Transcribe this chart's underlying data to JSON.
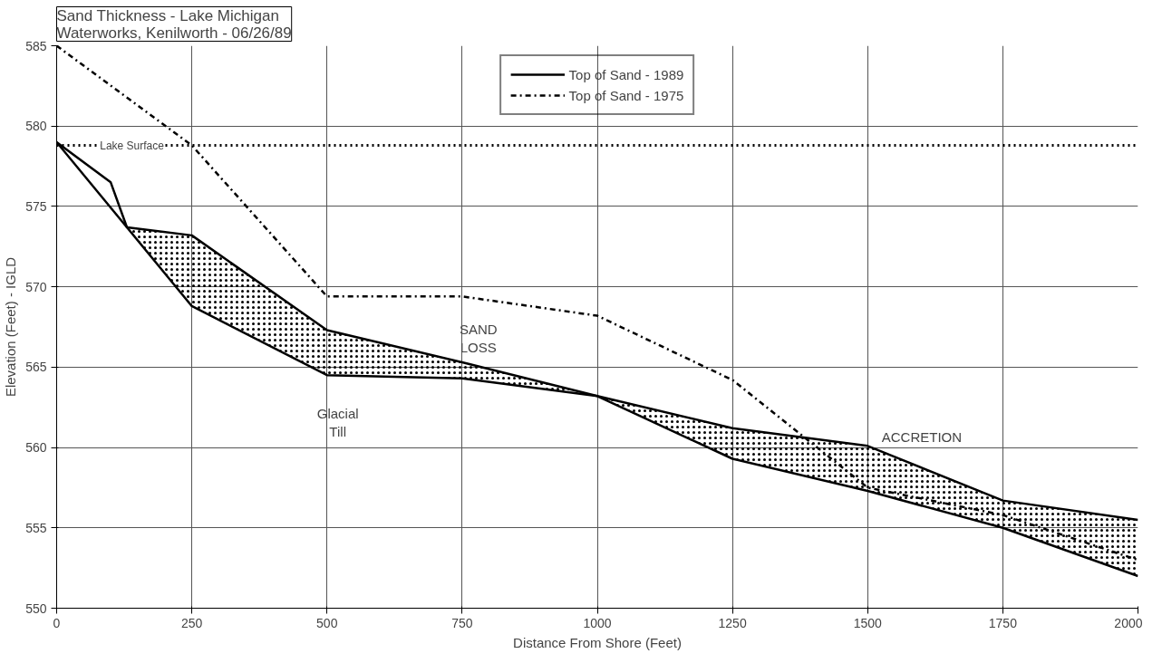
{
  "chart_data": {
    "type": "line",
    "title": "Sand Thickness - Lake Michigan\nWaterworks, Kenilworth - 06/26/89",
    "xlabel": "Distance From Shore (Feet)",
    "ylabel": "Elevation (Feet) - IGLD",
    "xlim": [
      0,
      2000
    ],
    "ylim": [
      550,
      585
    ],
    "xticks": [
      0,
      250,
      500,
      750,
      1000,
      1250,
      1500,
      1750,
      2000
    ],
    "yticks": [
      550,
      555,
      560,
      565,
      570,
      575,
      580,
      585
    ],
    "grid": true,
    "legend": "top",
    "marker": "none",
    "series": [
      {
        "name": "Top of Sand - 1989",
        "color": "#000000",
        "line_style": "solid",
        "x": [
          0,
          100,
          130,
          250,
          500,
          750,
          1000,
          1250,
          1500,
          1750,
          2000
        ],
        "values": [
          579,
          576.5,
          573.7,
          573.2,
          567.3,
          565.3,
          563.2,
          561.2,
          560.1,
          556.7,
          555.5
        ],
        "lower": [
          579,
          576.5,
          573.7,
          568.8,
          564.5,
          564.3,
          563.2,
          559.3,
          557.3,
          555,
          552
        ],
        "upper": [
          579,
          576.5,
          573.7,
          573.2,
          567.3,
          565.3,
          563.2,
          561.2,
          560.1,
          556.7,
          555.5
        ]
      },
      {
        "color": "#000000",
        "line_style": "solid",
        "x": [
          0,
          130,
          250,
          500,
          750,
          1000,
          1250,
          1500,
          1750,
          2000
        ],
        "values": [
          579,
          573.7,
          568.8,
          564.5,
          564.3,
          563.2,
          559.3,
          557.3,
          555,
          552
        ]
      },
      {
        "name": "Top of Sand - 1975",
        "color": "#000000",
        "line_style": "dashdot",
        "x": [
          0,
          250,
          500,
          750,
          1000,
          1250,
          1500,
          1750,
          2000
        ],
        "values": [
          585,
          578.8,
          569.4,
          569.4,
          568.2,
          564.2,
          557.5,
          555.8,
          553
        ]
      }
    ],
    "ref_lines": [
      {
        "axis": "y",
        "value": 578.8,
        "label": "Lake Surface",
        "line_style": "dotted",
        "color": "#000000"
      }
    ],
    "annotations": [
      "SAND\nLOSS",
      "Glacial\nTill",
      "ACCRETION"
    ]
  }
}
